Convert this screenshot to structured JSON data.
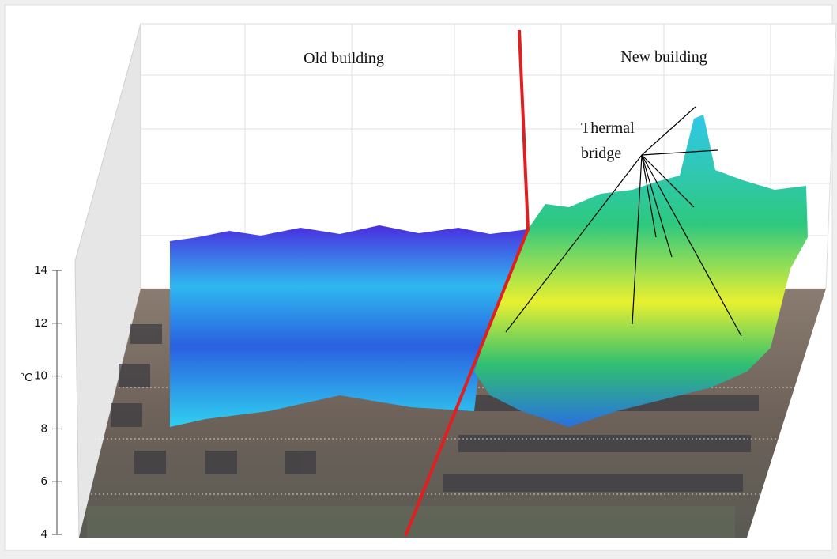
{
  "chart_data": {
    "type": "surface",
    "zlabel": "°C",
    "zlim": [
      4,
      14
    ],
    "zticks": [
      4,
      6,
      8,
      10,
      12,
      14
    ],
    "annotations": {
      "left_region": "Old building",
      "right_region": "New building",
      "callout": [
        "Thermal",
        "bridge"
      ]
    },
    "colormap": [
      "#3a1fd0",
      "#2a6ee8",
      "#2fd0f0",
      "#2ecc6a",
      "#f0f020"
    ],
    "divider_color": "#e02020"
  }
}
